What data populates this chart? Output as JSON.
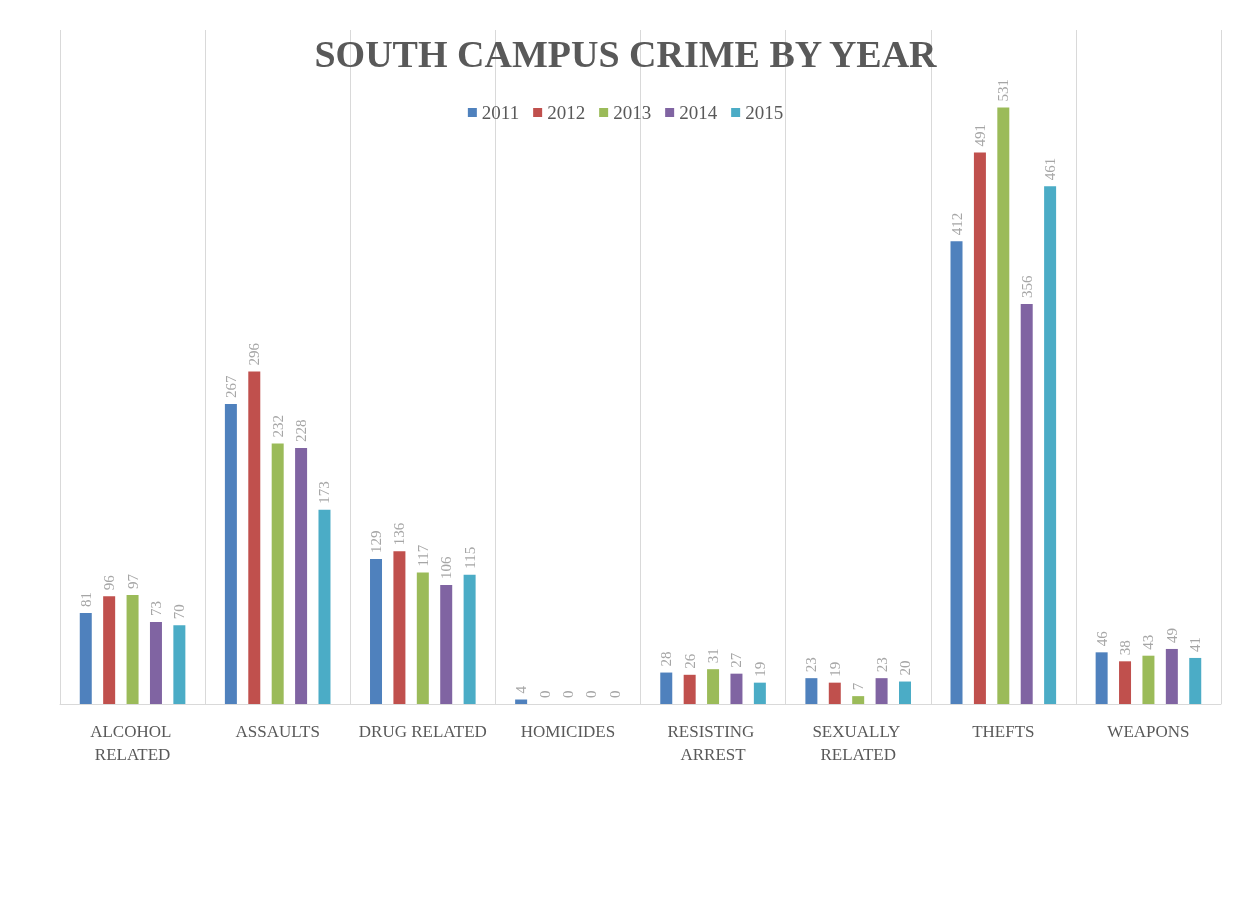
{
  "chart_data": {
    "type": "bar",
    "title": "SOUTH CAMPUS CRIME BY YEAR",
    "categories": [
      "ALCOHOL RELATED",
      "ASSAULTS",
      "DRUG RELATED",
      "HOMICIDES",
      "RESISTING ARREST",
      "SEXUALLY RELATED",
      "THEFTS",
      "WEAPONS"
    ],
    "series": [
      {
        "name": "2011",
        "color": "#4f81bd",
        "values": [
          81,
          267,
          129,
          4,
          28,
          23,
          412,
          46
        ]
      },
      {
        "name": "2012",
        "color": "#c0504d",
        "values": [
          96,
          296,
          136,
          0,
          26,
          19,
          491,
          38
        ]
      },
      {
        "name": "2013",
        "color": "#9bbb59",
        "values": [
          97,
          232,
          117,
          0,
          31,
          7,
          531,
          43
        ]
      },
      {
        "name": "2014",
        "color": "#8064a2",
        "values": [
          73,
          228,
          106,
          0,
          27,
          23,
          356,
          49
        ]
      },
      {
        "name": "2015",
        "color": "#4bacc6",
        "values": [
          70,
          173,
          115,
          0,
          19,
          20,
          461,
          41
        ]
      }
    ],
    "data_labels": true,
    "grid": "x",
    "legend": "top"
  }
}
